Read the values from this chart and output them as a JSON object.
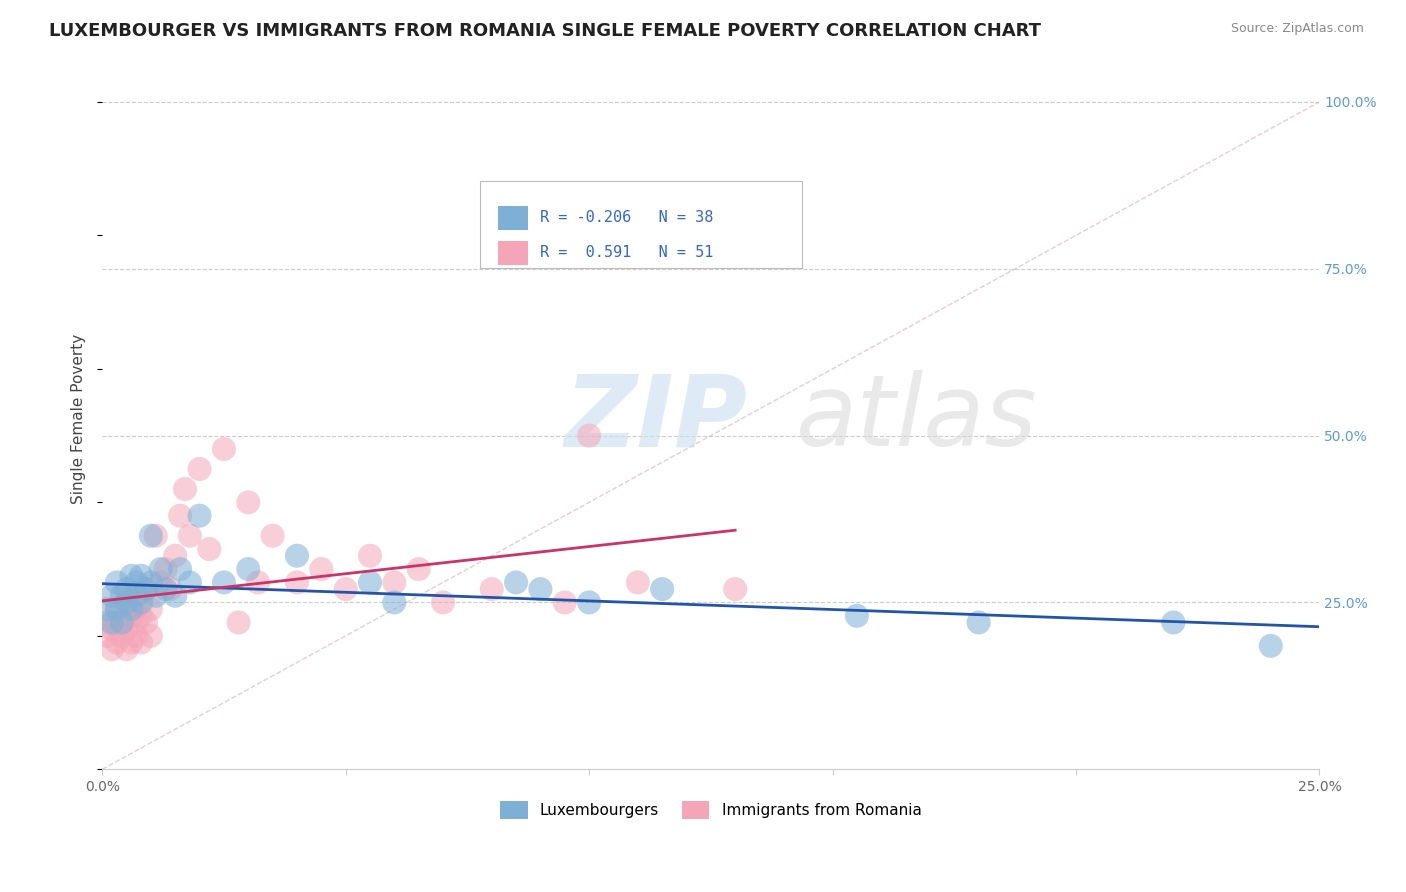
{
  "title": "LUXEMBOURGER VS IMMIGRANTS FROM ROMANIA SINGLE FEMALE POVERTY CORRELATION CHART",
  "source": "Source: ZipAtlas.com",
  "ylabel": "Single Female Poverty",
  "ytick_labels": [
    "25.0%",
    "50.0%",
    "75.0%",
    "100.0%"
  ],
  "ytick_values": [
    0.25,
    0.5,
    0.75,
    1.0
  ],
  "xlim": [
    0.0,
    0.25
  ],
  "ylim": [
    0.0,
    1.05
  ],
  "legend_label1": "Luxembourgers",
  "legend_label2": "Immigrants from Romania",
  "R1": -0.206,
  "N1": 38,
  "R2": 0.591,
  "N2": 51,
  "color1": "#7EB0D5",
  "color2": "#F4A6B8",
  "line_color1": "#2255AA",
  "line_color2": "#CC3366",
  "background_color": "#FFFFFF",
  "title_fontsize": 13,
  "label_fontsize": 11,
  "blue_x": [
    0.001,
    0.002,
    0.002,
    0.003,
    0.003,
    0.004,
    0.004,
    0.005,
    0.005,
    0.006,
    0.006,
    0.007,
    0.007,
    0.008,
    0.008,
    0.009,
    0.01,
    0.01,
    0.011,
    0.012,
    0.013,
    0.015,
    0.016,
    0.018,
    0.02,
    0.025,
    0.03,
    0.04,
    0.055,
    0.06,
    0.085,
    0.09,
    0.1,
    0.115,
    0.155,
    0.18,
    0.22,
    0.24
  ],
  "blue_y": [
    0.24,
    0.26,
    0.22,
    0.28,
    0.24,
    0.26,
    0.22,
    0.25,
    0.27,
    0.29,
    0.24,
    0.26,
    0.28,
    0.25,
    0.29,
    0.27,
    0.35,
    0.28,
    0.26,
    0.3,
    0.27,
    0.26,
    0.3,
    0.28,
    0.38,
    0.28,
    0.3,
    0.32,
    0.28,
    0.25,
    0.28,
    0.27,
    0.25,
    0.27,
    0.23,
    0.22,
    0.22,
    0.185
  ],
  "pink_x": [
    0.001,
    0.001,
    0.002,
    0.002,
    0.003,
    0.003,
    0.003,
    0.004,
    0.004,
    0.005,
    0.005,
    0.005,
    0.006,
    0.006,
    0.006,
    0.007,
    0.007,
    0.007,
    0.008,
    0.008,
    0.009,
    0.009,
    0.01,
    0.01,
    0.011,
    0.012,
    0.013,
    0.014,
    0.015,
    0.016,
    0.017,
    0.018,
    0.02,
    0.022,
    0.025,
    0.028,
    0.03,
    0.032,
    0.035,
    0.04,
    0.045,
    0.05,
    0.055,
    0.06,
    0.065,
    0.07,
    0.08,
    0.095,
    0.1,
    0.11,
    0.13
  ],
  "pink_y": [
    0.2,
    0.22,
    0.18,
    0.21,
    0.19,
    0.22,
    0.24,
    0.2,
    0.22,
    0.18,
    0.21,
    0.25,
    0.19,
    0.23,
    0.26,
    0.2,
    0.22,
    0.24,
    0.19,
    0.23,
    0.27,
    0.22,
    0.2,
    0.24,
    0.35,
    0.28,
    0.3,
    0.27,
    0.32,
    0.38,
    0.42,
    0.35,
    0.45,
    0.33,
    0.48,
    0.22,
    0.4,
    0.28,
    0.35,
    0.28,
    0.3,
    0.27,
    0.32,
    0.28,
    0.3,
    0.25,
    0.27,
    0.25,
    0.5,
    0.28,
    0.27
  ]
}
